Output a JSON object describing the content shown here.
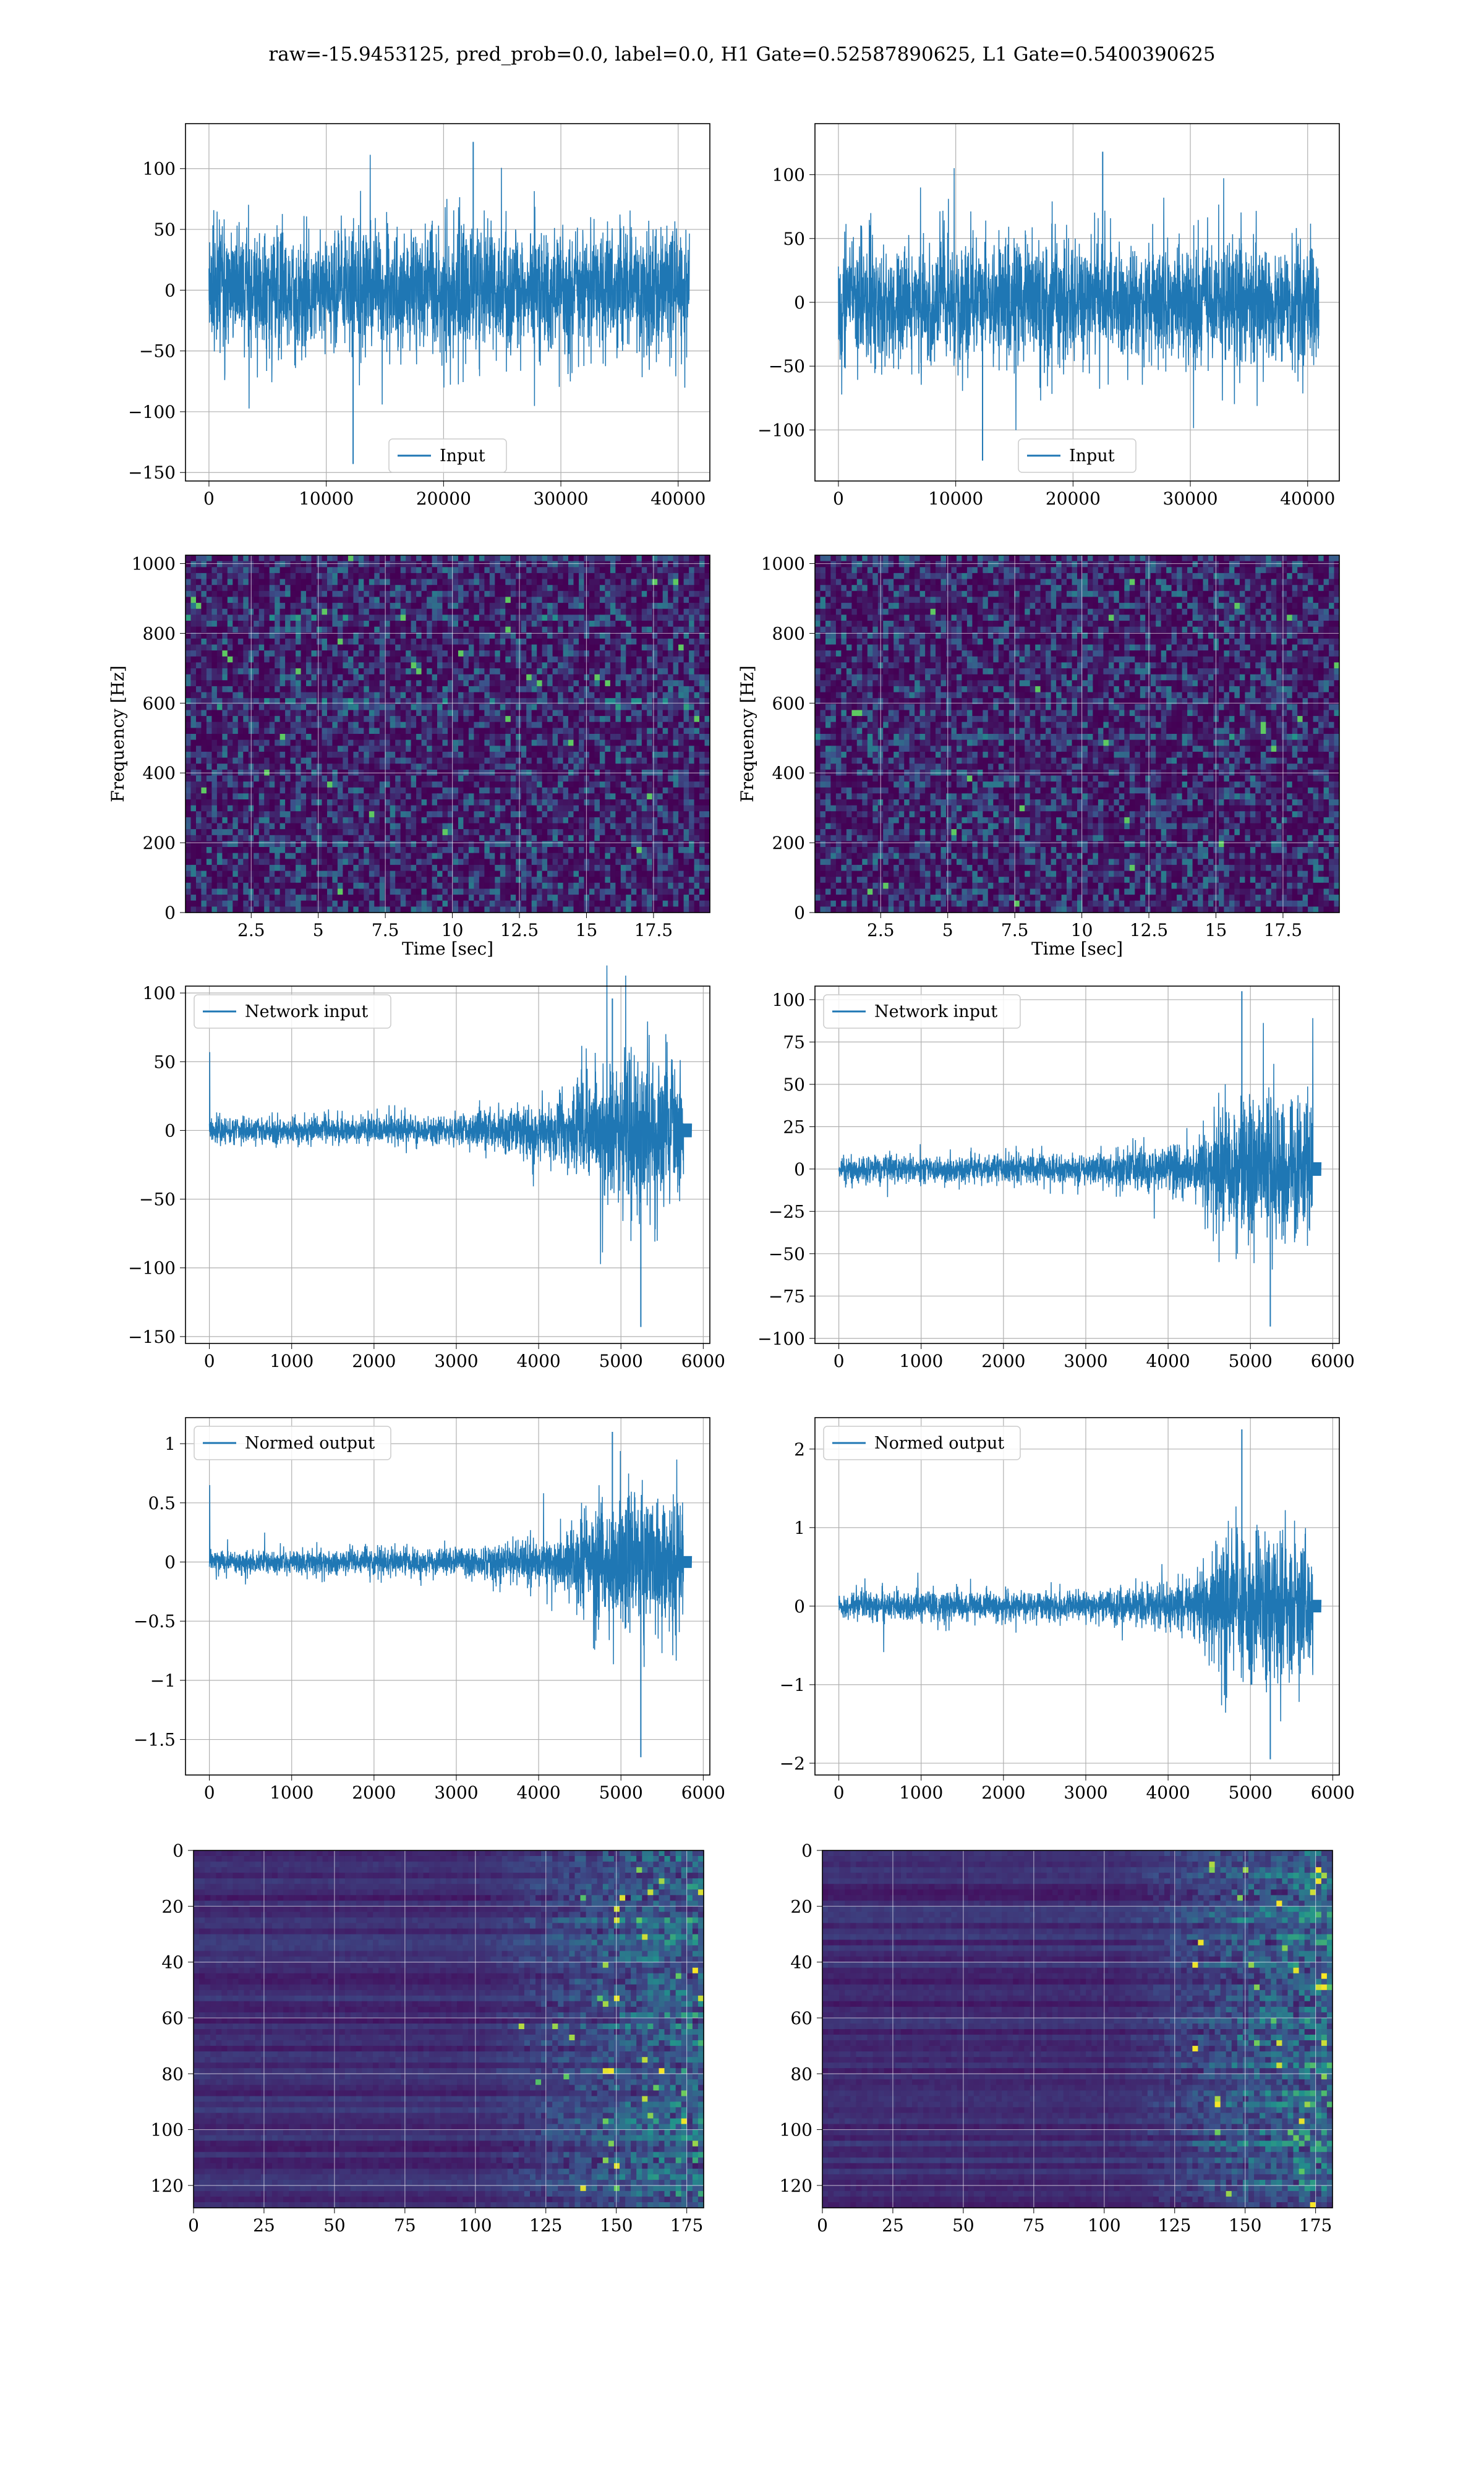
{
  "figure": {
    "suptitle": "raw=-15.9453125, pred_prob=0.0, label=0.0, H1 Gate=0.52587890625, L1 Gate=0.5400390625"
  },
  "chart_data": [
    {
      "id": "h1-input",
      "type": "line",
      "row": 0,
      "col": 0,
      "legend": "Input",
      "legend_loc": "lower center",
      "xlim": [
        -2000,
        42700
      ],
      "ylim": [
        -157,
        137
      ],
      "xticks": [
        0,
        10000,
        20000,
        30000,
        40000
      ],
      "yticks": [
        -150,
        -100,
        -50,
        0,
        50,
        100
      ],
      "signal": {
        "n": 40960,
        "env": [
          [
            0,
            45
          ],
          [
            40960,
            45
          ]
        ],
        "peak": 122,
        "low": -143
      },
      "grid": true
    },
    {
      "id": "l1-input",
      "type": "line",
      "row": 0,
      "col": 1,
      "legend": "Input",
      "legend_loc": "lower center",
      "xlim": [
        -2000,
        42700
      ],
      "ylim": [
        -140,
        140
      ],
      "xticks": [
        0,
        10000,
        20000,
        30000,
        40000
      ],
      "yticks": [
        -100,
        -50,
        0,
        50,
        100
      ],
      "signal": {
        "n": 40960,
        "env": [
          [
            0,
            42
          ],
          [
            40960,
            42
          ]
        ],
        "peak": 118,
        "low": -124
      },
      "grid": true
    },
    {
      "id": "h1-spectrogram",
      "type": "heatmap",
      "row": 1,
      "col": 0,
      "xlabel": "Time [sec]",
      "ylabel": "Frequency [Hz]",
      "xlim": [
        0.05,
        19.6
      ],
      "ylim": [
        0,
        1024
      ],
      "xticks": [
        2.5,
        5.0,
        7.5,
        10.0,
        12.5,
        15.0,
        17.5
      ],
      "yticks": [
        0,
        200,
        400,
        600,
        800,
        1000
      ],
      "lines_hz": [
        840,
        600
      ],
      "grid": true
    },
    {
      "id": "l1-spectrogram",
      "type": "heatmap",
      "row": 1,
      "col": 1,
      "xlabel": "Time [sec]",
      "ylabel": "Frequency [Hz]",
      "xlim": [
        0.05,
        19.6
      ],
      "ylim": [
        0,
        1024
      ],
      "xticks": [
        2.5,
        5.0,
        7.5,
        10.0,
        12.5,
        15.0,
        17.5
      ],
      "yticks": [
        0,
        200,
        400,
        600,
        800,
        1000
      ],
      "lines_hz": [
        500
      ],
      "grid": true
    },
    {
      "id": "h1-network-input",
      "type": "line",
      "row": 2,
      "col": 0,
      "legend": "Network input",
      "legend_loc": "upper left",
      "xlim": [
        -290,
        6080
      ],
      "ylim": [
        -155,
        105
      ],
      "xticks": [
        0,
        1000,
        2000,
        3000,
        4000,
        5000,
        6000
      ],
      "yticks": [
        -150,
        -100,
        -50,
        0,
        50,
        100
      ],
      "signal": {
        "n": 5760,
        "env": [
          [
            0,
            8
          ],
          [
            3000,
            10
          ],
          [
            4300,
            20
          ],
          [
            4700,
            45
          ],
          [
            5300,
            55
          ],
          [
            5740,
            45
          ]
        ],
        "peak": 96,
        "low": -143,
        "spike": 57,
        "tail": 5
      },
      "grid": true
    },
    {
      "id": "l1-network-input",
      "type": "line",
      "row": 2,
      "col": 1,
      "legend": "Network input",
      "legend_loc": "upper left",
      "xlim": [
        -290,
        6080
      ],
      "ylim": [
        -103,
        108
      ],
      "xticks": [
        0,
        1000,
        2000,
        3000,
        4000,
        5000,
        6000
      ],
      "yticks": [
        -100,
        -75,
        -50,
        -25,
        0,
        25,
        50,
        75,
        100
      ],
      "signal": {
        "n": 5760,
        "env": [
          [
            0,
            7
          ],
          [
            3000,
            8
          ],
          [
            4300,
            14
          ],
          [
            4650,
            35
          ],
          [
            5300,
            40
          ],
          [
            5740,
            35
          ]
        ],
        "peak": 105,
        "low": -93,
        "spike": 0,
        "tail": 4
      },
      "grid": true
    },
    {
      "id": "h1-normed-output",
      "type": "line",
      "row": 3,
      "col": 0,
      "legend": "Normed output",
      "legend_loc": "upper left",
      "xlim": [
        -290,
        6080
      ],
      "ylim": [
        -1.8,
        1.22
      ],
      "xticks": [
        0,
        1000,
        2000,
        3000,
        4000,
        5000,
        6000
      ],
      "yticks": [
        -1.5,
        -1.0,
        -0.5,
        0.0,
        0.5,
        1.0
      ],
      "signal": {
        "n": 5760,
        "env": [
          [
            0,
            0.08
          ],
          [
            3000,
            0.1
          ],
          [
            4300,
            0.2
          ],
          [
            4700,
            0.5
          ],
          [
            5300,
            0.55
          ],
          [
            5740,
            0.5
          ]
        ],
        "peak": 1.1,
        "low": -1.65,
        "spike": 0.65,
        "tail": 0.05
      },
      "grid": true
    },
    {
      "id": "l1-normed-output",
      "type": "line",
      "row": 3,
      "col": 1,
      "legend": "Normed output",
      "legend_loc": "upper left",
      "xlim": [
        -290,
        6080
      ],
      "ylim": [
        -2.15,
        2.4
      ],
      "xticks": [
        0,
        1000,
        2000,
        3000,
        4000,
        5000,
        6000
      ],
      "yticks": [
        -2,
        -1,
        0,
        1,
        2
      ],
      "signal": {
        "n": 5760,
        "env": [
          [
            0,
            0.15
          ],
          [
            3000,
            0.17
          ],
          [
            4300,
            0.3
          ],
          [
            4650,
            0.75
          ],
          [
            5300,
            0.85
          ],
          [
            5740,
            0.75
          ]
        ],
        "peak": 2.25,
        "low": -1.95,
        "spike": 0,
        "tail": 0.08
      },
      "grid": true
    },
    {
      "id": "h1-feature-map",
      "type": "heatmap",
      "row": 4,
      "col": 0,
      "xlim": [
        0,
        181
      ],
      "ylim": [
        128,
        0
      ],
      "y_inverted": true,
      "xticks": [
        0,
        25,
        50,
        75,
        100,
        125,
        150,
        175
      ],
      "yticks": [
        0,
        20,
        40,
        60,
        80,
        100,
        120
      ],
      "activation_onset": 100,
      "grid": true
    },
    {
      "id": "l1-feature-map",
      "type": "heatmap",
      "row": 4,
      "col": 1,
      "xlim": [
        0,
        181
      ],
      "ylim": [
        128,
        0
      ],
      "y_inverted": true,
      "xticks": [
        0,
        25,
        50,
        75,
        100,
        125,
        150,
        175
      ],
      "yticks": [
        0,
        20,
        40,
        60,
        80,
        100,
        120
      ],
      "activation_onset": 105,
      "grid": true
    }
  ],
  "colors": {
    "line": "#1f77b4",
    "grid": "#b0b0b0",
    "axis": "#000000",
    "viridis_low": "#440154",
    "viridis_mid": "#21918c",
    "viridis_high": "#fde725"
  }
}
